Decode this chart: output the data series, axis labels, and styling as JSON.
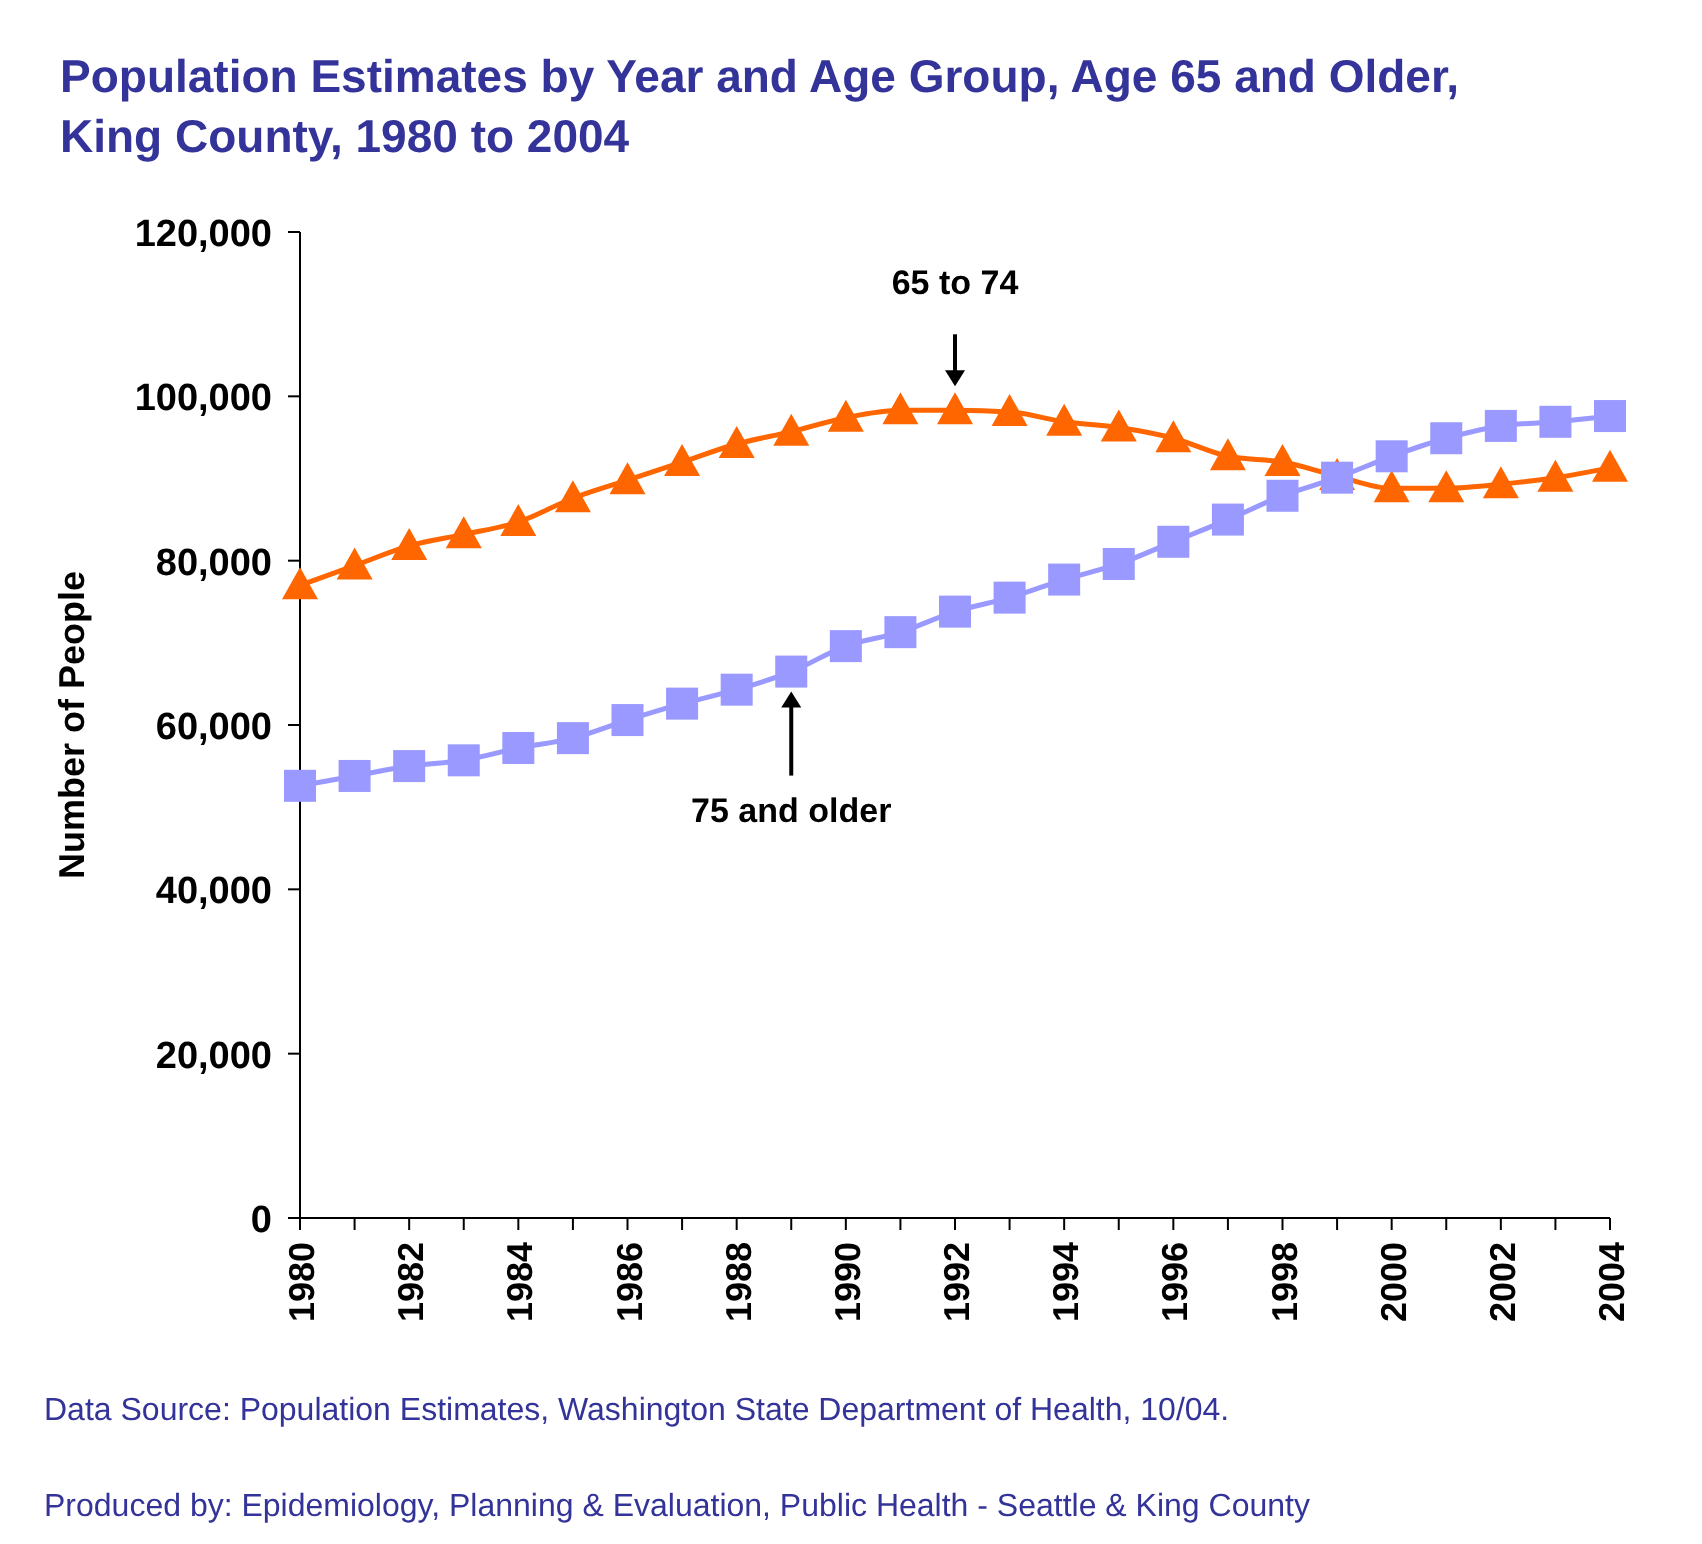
{
  "chart_data": {
    "type": "line",
    "title": "Population Estimates by Year and Age Group, Age 65 and Older,\nKing County, 1980 to 2004",
    "ylabel": "Number of People",
    "x": [
      1980,
      1981,
      1982,
      1983,
      1984,
      1985,
      1986,
      1987,
      1988,
      1989,
      1990,
      1991,
      1992,
      1993,
      1994,
      1995,
      1996,
      1997,
      1998,
      1999,
      2000,
      2001,
      2002,
      2003,
      2004
    ],
    "series": [
      {
        "name": "65 to 74",
        "color": "#ff6600",
        "marker": "triangle",
        "values": [
          77000,
          79400,
          81800,
          83200,
          84700,
          87600,
          89800,
          92000,
          94200,
          95700,
          97400,
          98300,
          98300,
          98100,
          96900,
          96200,
          94900,
          92700,
          92000,
          90300,
          88800,
          88800,
          89300,
          90100,
          91300
        ]
      },
      {
        "name": "75 and older",
        "color": "#9999ff",
        "marker": "square",
        "values": [
          52600,
          53800,
          55000,
          55700,
          57200,
          58400,
          60600,
          62600,
          64300,
          66500,
          69600,
          71300,
          73800,
          75500,
          77700,
          79600,
          82300,
          85000,
          87900,
          90100,
          92700,
          94900,
          96400,
          96900,
          97600
        ]
      }
    ],
    "xlim": [
      1980,
      2004
    ],
    "xticks": [
      1980,
      {
        "value": 1981,
        "label": null
      },
      1982,
      {
        "value": 1983,
        "label": null
      },
      1984,
      {
        "value": 1985,
        "label": null
      },
      1986,
      {
        "value": 1987,
        "label": null
      },
      1988,
      {
        "value": 1989,
        "label": null
      },
      1990,
      {
        "value": 1991,
        "label": null
      },
      1992,
      {
        "value": 1993,
        "label": null
      },
      1994,
      {
        "value": 1995,
        "label": null
      },
      1996,
      {
        "value": 1997,
        "label": null
      },
      1998,
      {
        "value": 1999,
        "label": null
      },
      2000,
      {
        "value": 2001,
        "label": null
      },
      2002,
      {
        "value": 2003,
        "label": null
      },
      2004
    ],
    "ylim": [
      0,
      120000
    ],
    "yticks": [
      {
        "value": 0,
        "label": "0"
      },
      {
        "value": 20000,
        "label": "20,000"
      },
      {
        "value": 40000,
        "label": "40,000"
      },
      {
        "value": 60000,
        "label": "60,000"
      },
      {
        "value": 80000,
        "label": "80,000"
      },
      {
        "value": 100000,
        "label": "100,000"
      },
      {
        "value": 120000,
        "label": "120,000"
      }
    ],
    "grid": false,
    "line_style": "solid",
    "annotations": [
      "Data Source:  Population Estimates, Washington State Department of Health, 10/04.",
      "Produced by: Epidemiology, Planning & Evaluation, Public Health - Seattle & King County"
    ]
  }
}
